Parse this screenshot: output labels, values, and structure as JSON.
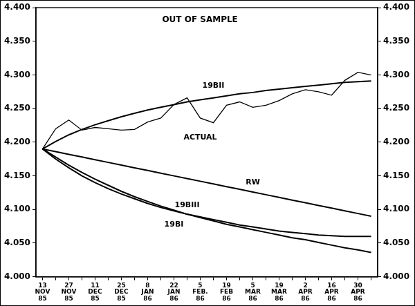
{
  "chart_data": {
    "type": "line",
    "title": "OUT OF SAMPLE",
    "categories": [
      "13 NOV 85",
      null,
      "27 NOV 85",
      null,
      "11 DEC 85",
      null,
      "25 DEC 85",
      null,
      "8 JAN 86",
      null,
      "22 JAN 86",
      null,
      "5 FEB. 86",
      null,
      "19 FEB 86",
      null,
      "5 MAR 86",
      null,
      "19 MAR 86",
      null,
      "2 APR 86",
      null,
      "16 APR 86",
      null,
      "30 APR 86",
      null
    ],
    "series": [
      {
        "name": "19BII",
        "color": "#000000",
        "values": [
          4.19,
          4.201,
          4.211,
          4.219,
          4.226,
          4.232,
          4.238,
          4.243,
          4.248,
          4.252,
          4.256,
          4.26,
          4.263,
          4.266,
          4.269,
          4.272,
          4.274,
          4.277,
          4.279,
          4.281,
          4.283,
          4.285,
          4.287,
          4.289,
          4.29,
          4.291
        ]
      },
      {
        "name": "ACTUAL",
        "color": "#000000",
        "values": [
          4.19,
          4.22,
          4.233,
          4.218,
          4.222,
          4.22,
          4.218,
          4.219,
          4.23,
          4.236,
          4.256,
          4.266,
          4.236,
          4.229,
          4.255,
          4.26,
          4.252,
          4.255,
          4.262,
          4.272,
          4.278,
          4.275,
          4.27,
          4.292,
          4.304,
          4.3
        ]
      },
      {
        "name": "RW",
        "color": "#000000",
        "values": [
          4.19,
          4.186,
          4.182,
          4.178,
          4.174,
          4.17,
          4.166,
          4.162,
          4.158,
          4.154,
          4.15,
          4.146,
          4.142,
          4.138,
          4.134,
          4.13,
          4.126,
          4.122,
          4.118,
          4.114,
          4.11,
          4.106,
          4.102,
          4.098,
          4.094,
          4.09
        ]
      },
      {
        "name": "19BIII",
        "color": "#000000",
        "values": [
          4.19,
          4.178,
          4.166,
          4.155,
          4.145,
          4.136,
          4.127,
          4.119,
          4.112,
          4.105,
          4.099,
          4.093,
          4.088,
          4.083,
          4.078,
          4.074,
          4.07,
          4.066,
          4.062,
          4.058,
          4.055,
          4.051,
          4.047,
          4.043,
          4.04,
          4.036
        ]
      },
      {
        "name": "19BI",
        "color": "#000000",
        "values": [
          4.19,
          4.175,
          4.162,
          4.15,
          4.14,
          4.131,
          4.123,
          4.116,
          4.109,
          4.103,
          4.098,
          4.093,
          4.089,
          4.085,
          4.081,
          4.077,
          4.074,
          4.071,
          4.068,
          4.066,
          4.064,
          4.062,
          4.061,
          4.06,
          4.06,
          4.06
        ]
      }
    ],
    "ylim": [
      4.0,
      4.4
    ],
    "yticks": [
      {
        "value": 4.0,
        "label": "4.000"
      },
      {
        "value": 4.05,
        "label": "4.050"
      },
      {
        "value": 4.1,
        "label": "4.100"
      },
      {
        "value": 4.15,
        "label": "4.150"
      },
      {
        "value": 4.2,
        "label": "4.200"
      },
      {
        "value": 4.25,
        "label": "4.250"
      },
      {
        "value": 4.3,
        "label": "4.300"
      },
      {
        "value": 4.35,
        "label": "4.350"
      },
      {
        "value": 4.4,
        "label": "4.400"
      }
    ],
    "y2lim": [
      4.0,
      4.4
    ],
    "y2ticks": [
      {
        "value": 4.0,
        "label": "4.000"
      },
      {
        "value": 4.05,
        "label": "4.050"
      },
      {
        "value": 4.1,
        "label": "4.100"
      },
      {
        "value": 4.15,
        "label": "4.150"
      },
      {
        "value": 4.2,
        "label": "4.200"
      },
      {
        "value": 4.25,
        "label": "4.250"
      },
      {
        "value": 4.3,
        "label": "4.300"
      },
      {
        "value": 4.35,
        "label": "4.350"
      },
      {
        "value": 4.4,
        "label": "4.400"
      }
    ],
    "grid": false,
    "legend": "none"
  }
}
